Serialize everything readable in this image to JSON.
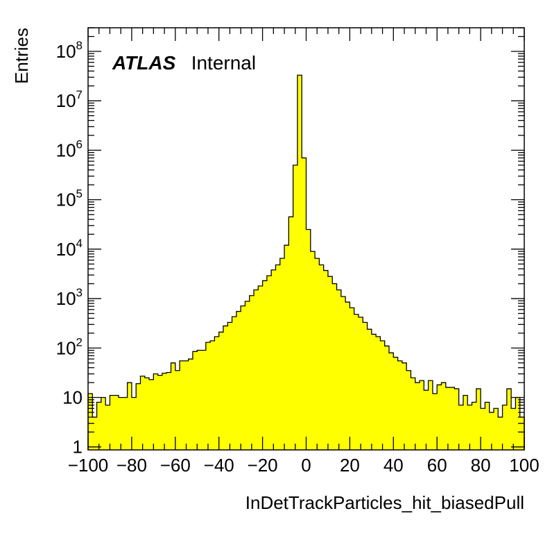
{
  "chart_data": {
    "type": "bar",
    "xlabel": "InDetTrackParticles_hit_biasedPull",
    "ylabel": "Entries",
    "label_bold": "ATLAS",
    "label": "Internal",
    "xlim": [
      -100,
      100
    ],
    "ylim": [
      0.87,
      300000000
    ],
    "log_y": true,
    "grid": false,
    "fill_color": "#ffff00",
    "line_color": "#000000",
    "bin_width": 2,
    "x_ticks": [
      -100,
      -80,
      -60,
      -40,
      -20,
      0,
      20,
      40,
      60,
      80,
      100
    ],
    "x_tick_labels": [
      "−100",
      "−80",
      "−60",
      "−40",
      "−20",
      "0",
      "20",
      "40",
      "60",
      "80",
      "100"
    ],
    "y_ticks": [
      {
        "value": 1,
        "base": "1",
        "exp": ""
      },
      {
        "value": 10,
        "base": "10",
        "exp": ""
      },
      {
        "value": 100,
        "base": "10",
        "exp": "2"
      },
      {
        "value": 1000,
        "base": "10",
        "exp": "3"
      },
      {
        "value": 10000,
        "base": "10",
        "exp": "4"
      },
      {
        "value": 100000,
        "base": "10",
        "exp": "5"
      },
      {
        "value": 1000000,
        "base": "10",
        "exp": "6"
      },
      {
        "value": 10000000,
        "base": "10",
        "exp": "7"
      },
      {
        "value": 100000000,
        "base": "10",
        "exp": "8"
      }
    ],
    "bin_edges_start": -100,
    "values": [
      12,
      4,
      8,
      10,
      7,
      11,
      11,
      10,
      10,
      20,
      10,
      19,
      27,
      25,
      23,
      30,
      28,
      31,
      32,
      50,
      35,
      55,
      55,
      60,
      85,
      90,
      90,
      130,
      140,
      170,
      210,
      280,
      330,
      430,
      550,
      710,
      880,
      1150,
      1500,
      1800,
      2300,
      2900,
      3800,
      4800,
      6500,
      12000,
      45000,
      500000,
      33000000,
      700000,
      25000,
      9000,
      6500,
      4800,
      3700,
      2800,
      2000,
      1500,
      1100,
      850,
      650,
      480,
      420,
      330,
      240,
      190,
      170,
      140,
      110,
      80,
      65,
      55,
      50,
      35,
      25,
      20,
      22,
      14,
      22,
      12,
      18,
      20,
      16,
      16,
      15,
      7,
      11,
      7,
      8,
      15,
      6,
      8,
      5,
      6,
      4,
      7,
      15,
      6,
      10,
      4
    ]
  }
}
